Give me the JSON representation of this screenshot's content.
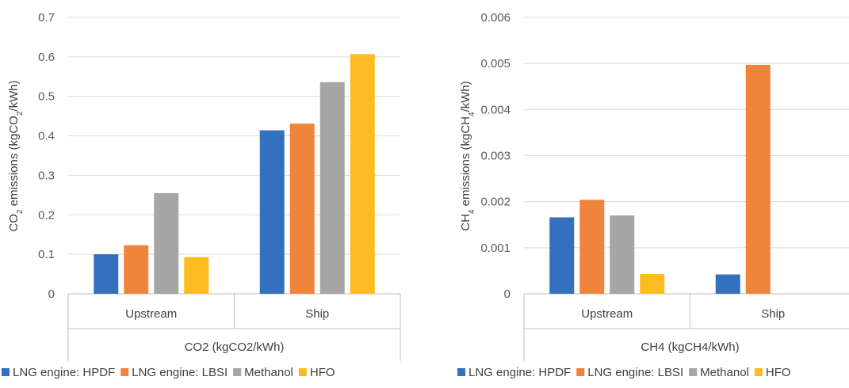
{
  "colors": {
    "hpdf": "#3370BE",
    "lbsi": "#F0843D",
    "methanol": "#A6A6A6",
    "hfo": "#FDBB22"
  },
  "chart_data": [
    {
      "type": "bar",
      "ylabel": {
        "prefix": "CO",
        "sub": "2",
        "middle": " emissions (kgCO",
        "sub2": "2",
        "suffix": "/kWh)"
      },
      "group_label": "CO2 (kgCO2/kWh)",
      "categories": [
        "Upstream",
        "Ship"
      ],
      "ylim": [
        0,
        0.7
      ],
      "yticks": [
        "0",
        "0.1",
        "0.2",
        "0.3",
        "0.4",
        "0.5",
        "0.6",
        "0.7"
      ],
      "grid": true,
      "legend_position": "bottom",
      "series": [
        {
          "name": "LNG engine: HPDF",
          "values": [
            0.1,
            0.414
          ]
        },
        {
          "name": "LNG engine: LBSI",
          "values": [
            0.123,
            0.431
          ]
        },
        {
          "name": "Methanol",
          "values": [
            0.255,
            0.536
          ]
        },
        {
          "name": "HFO",
          "values": [
            0.093,
            0.607
          ]
        }
      ]
    },
    {
      "type": "bar",
      "ylabel": {
        "prefix": "CH",
        "sub": "4",
        "middle": " emissions (kgCH",
        "sub2": "4",
        "suffix": "/kWh)"
      },
      "group_label": "CH4 (kgCH4/kWh)",
      "categories": [
        "Upstream",
        "Ship"
      ],
      "ylim": [
        0,
        0.006
      ],
      "yticks": [
        "0",
        "0.001",
        "0.002",
        "0.003",
        "0.004",
        "0.005",
        "0.006"
      ],
      "grid": true,
      "legend_position": "bottom",
      "series": [
        {
          "name": "LNG engine: HPDF",
          "values": [
            0.00166,
            0.00042
          ]
        },
        {
          "name": "LNG engine: LBSI",
          "values": [
            0.00204,
            0.00497
          ]
        },
        {
          "name": "Methanol",
          "values": [
            0.0017,
            0
          ]
        },
        {
          "name": "HFO",
          "values": [
            0.00043,
            0
          ]
        }
      ]
    }
  ]
}
